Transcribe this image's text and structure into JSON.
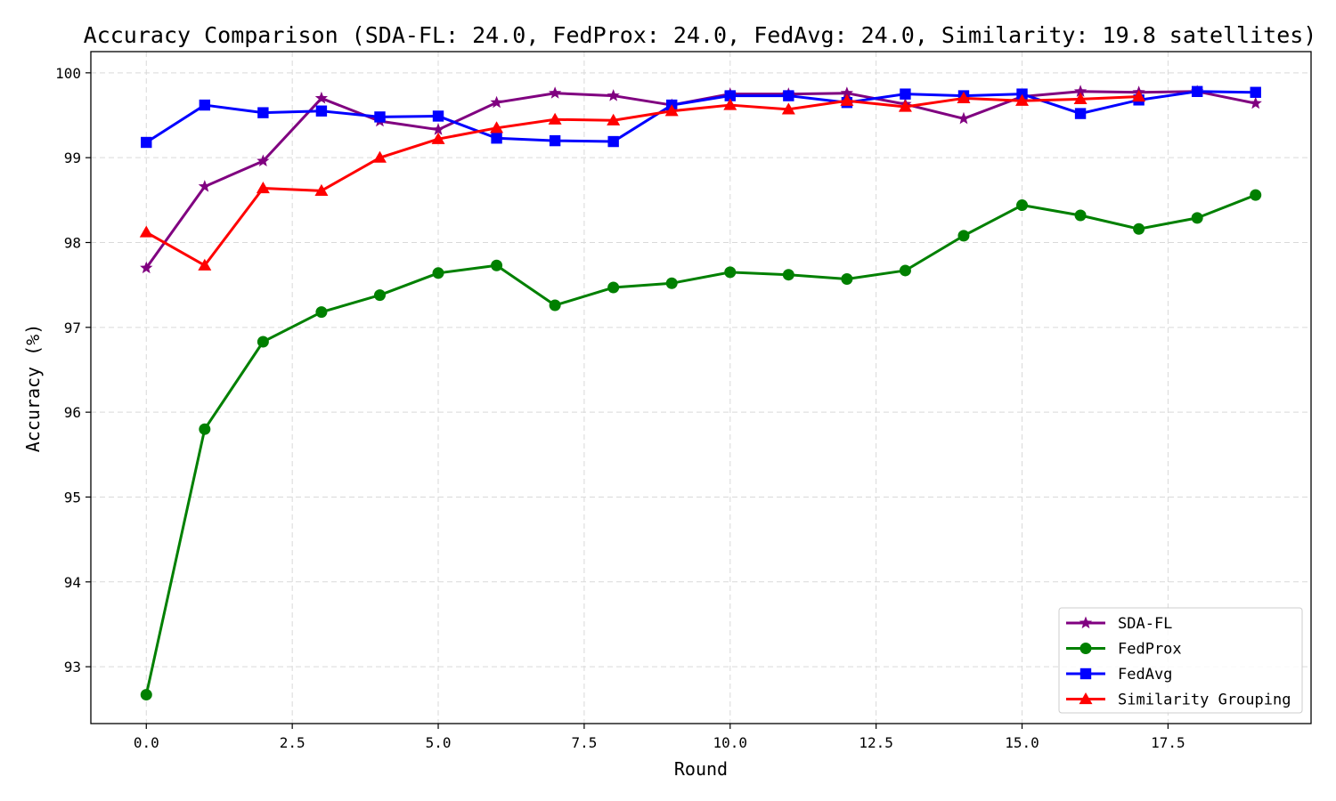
{
  "chart_data": {
    "type": "line",
    "title": "Accuracy Comparison (SDA-FL: 24.0, FedProx: 24.0, FedAvg: 24.0, Similarity: 19.8 satellites)",
    "xlabel": "Round",
    "ylabel": "Accuracy (%)",
    "xlim": [
      -0.95,
      19.95
    ],
    "ylim": [
      92.33,
      100.25
    ],
    "xticks": [
      0.0,
      2.5,
      5.0,
      7.5,
      10.0,
      12.5,
      15.0,
      17.5
    ],
    "xtick_labels": [
      "0.0",
      "2.5",
      "5.0",
      "7.5",
      "10.0",
      "12.5",
      "15.0",
      "17.5"
    ],
    "yticks": [
      93,
      94,
      95,
      96,
      97,
      98,
      99,
      100
    ],
    "ytick_labels": [
      "93",
      "94",
      "95",
      "96",
      "97",
      "98",
      "99",
      "100"
    ],
    "grid": true,
    "legend_position": "lower-right",
    "series": [
      {
        "name": "SDA-FL",
        "color": "#800080",
        "marker": "star",
        "x": [
          0,
          1,
          2,
          3,
          4,
          5,
          6,
          7,
          8,
          9,
          10,
          11,
          12,
          13,
          14,
          15,
          16,
          17,
          18,
          19
        ],
        "values": [
          97.7,
          98.66,
          98.96,
          99.7,
          99.43,
          99.33,
          99.65,
          99.76,
          99.73,
          99.62,
          99.75,
          99.75,
          99.76,
          99.63,
          99.46,
          99.72,
          99.78,
          99.77,
          99.78,
          99.64
        ]
      },
      {
        "name": "FedProx",
        "color": "#008000",
        "marker": "circle",
        "x": [
          0,
          1,
          2,
          3,
          4,
          5,
          6,
          7,
          8,
          9,
          10,
          11,
          12,
          13,
          14,
          15,
          16,
          17,
          18,
          19
        ],
        "values": [
          92.67,
          95.8,
          96.83,
          97.18,
          97.38,
          97.64,
          97.73,
          97.26,
          97.47,
          97.52,
          97.65,
          97.62,
          97.57,
          97.67,
          98.08,
          98.44,
          98.32,
          98.16,
          98.29,
          98.56
        ]
      },
      {
        "name": "FedAvg",
        "color": "#0000ff",
        "marker": "square",
        "x": [
          0,
          1,
          2,
          3,
          4,
          5,
          6,
          7,
          8,
          9,
          10,
          11,
          12,
          13,
          14,
          15,
          16,
          17,
          18,
          19
        ],
        "values": [
          99.18,
          99.62,
          99.53,
          99.55,
          99.48,
          99.49,
          99.23,
          99.2,
          99.19,
          99.62,
          99.73,
          99.73,
          99.65,
          99.75,
          99.73,
          99.75,
          99.52,
          99.68,
          99.78,
          99.77
        ]
      },
      {
        "name": "Similarity Grouping",
        "color": "#ff0000",
        "marker": "triangle",
        "x": [
          0,
          1,
          2,
          3,
          4,
          5,
          6,
          7,
          8,
          9,
          10,
          11,
          12,
          13,
          14,
          15,
          16,
          17
        ],
        "values": [
          98.12,
          97.73,
          98.64,
          98.61,
          99.0,
          99.22,
          99.35,
          99.45,
          99.44,
          99.55,
          99.62,
          99.57,
          99.67,
          99.6,
          99.7,
          99.67,
          99.69,
          99.72
        ]
      }
    ]
  }
}
